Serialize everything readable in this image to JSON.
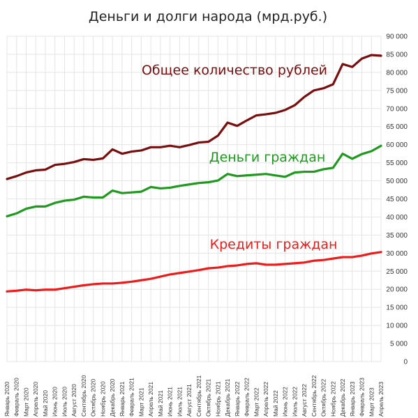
{
  "chart_data": {
    "type": "line",
    "title": "Деньги и долги народа (мрд.руб.)",
    "xlabel": "",
    "ylabel": "",
    "ylim": [
      0,
      90000
    ],
    "y_axis_position": "right",
    "y_ticks": [
      "0",
      "5 000",
      "10 000",
      "15 000",
      "20 000",
      "25 000",
      "30 000",
      "35 000",
      "40 000",
      "45 000",
      "50 000",
      "55 000",
      "60 000",
      "65 000",
      "70 000",
      "75 000",
      "80 000",
      "85 000",
      "90 000"
    ],
    "y_tick_values": [
      0,
      5000,
      10000,
      15000,
      20000,
      25000,
      30000,
      35000,
      40000,
      45000,
      50000,
      55000,
      60000,
      65000,
      70000,
      75000,
      80000,
      85000,
      90000
    ],
    "grid": true,
    "legend": "none",
    "categories": [
      "Январь 2020",
      "Февраль 2020",
      "Март 2020",
      "Апрель 2020",
      "Май 2020",
      "Июнь 2020",
      "Июль 2020",
      "Август 2020",
      "Сентябрь 2020",
      "Октябрь 2020",
      "Ноябрь 2020",
      "Декабрь 2020",
      "Январь 2021",
      "Февраль 2021",
      "Март 2021",
      "Апрель 2021",
      "Май 2021",
      "Июнь 2021",
      "Июль 2021",
      "Август 2021",
      "Сентябрь 2021",
      "Октябрь 2021",
      "Ноябрь 2021",
      "Декабрь 2021",
      "Январь 2022",
      "Февраль 2022",
      "Март 2022",
      "Апрель 2022",
      "Май 2022",
      "Июнь 2022",
      "Июль 2022",
      "Август 2022",
      "Сентябрь 2022",
      "Октябрь 2022",
      "Ноябрь 2022",
      "Декабрь 2022",
      "Январь 2023",
      "Февраль 2023",
      "Март 2023",
      "Апрель 2023"
    ],
    "series": [
      {
        "name": "Общее количество рублей",
        "color": "#7a0d0d",
        "values": [
          50500,
          51300,
          52300,
          52900,
          53100,
          54400,
          54700,
          55200,
          56000,
          55800,
          56200,
          58700,
          57500,
          58100,
          58400,
          59300,
          59300,
          59700,
          59300,
          59900,
          60600,
          60800,
          62500,
          66100,
          65200,
          66700,
          68100,
          68400,
          68800,
          69600,
          70900,
          73200,
          75000,
          75600,
          76700,
          82300,
          81500,
          83800,
          84800,
          84600
        ]
      },
      {
        "name": "Деньги граждан",
        "color": "#1f9a1f",
        "values": [
          40200,
          41000,
          42300,
          42900,
          42900,
          43900,
          44500,
          44800,
          45600,
          45400,
          45400,
          47300,
          46600,
          46800,
          47000,
          48300,
          47900,
          48100,
          48600,
          49000,
          49400,
          49600,
          50100,
          51900,
          51300,
          51500,
          51700,
          51900,
          51500,
          51100,
          52300,
          52500,
          52500,
          53200,
          53600,
          57500,
          56100,
          57400,
          58200,
          59700
        ]
      },
      {
        "name": "Кредиты граждан",
        "color": "#ee1b1b",
        "values": [
          19400,
          19600,
          19900,
          19700,
          19900,
          19900,
          20300,
          20700,
          21100,
          21400,
          21600,
          21600,
          21800,
          22100,
          22500,
          22900,
          23500,
          24100,
          24500,
          24900,
          25300,
          25800,
          26000,
          26400,
          26600,
          27000,
          27200,
          26800,
          26800,
          27000,
          27200,
          27400,
          27900,
          28100,
          28500,
          28900,
          28900,
          29300,
          29900,
          30300
        ]
      }
    ]
  }
}
